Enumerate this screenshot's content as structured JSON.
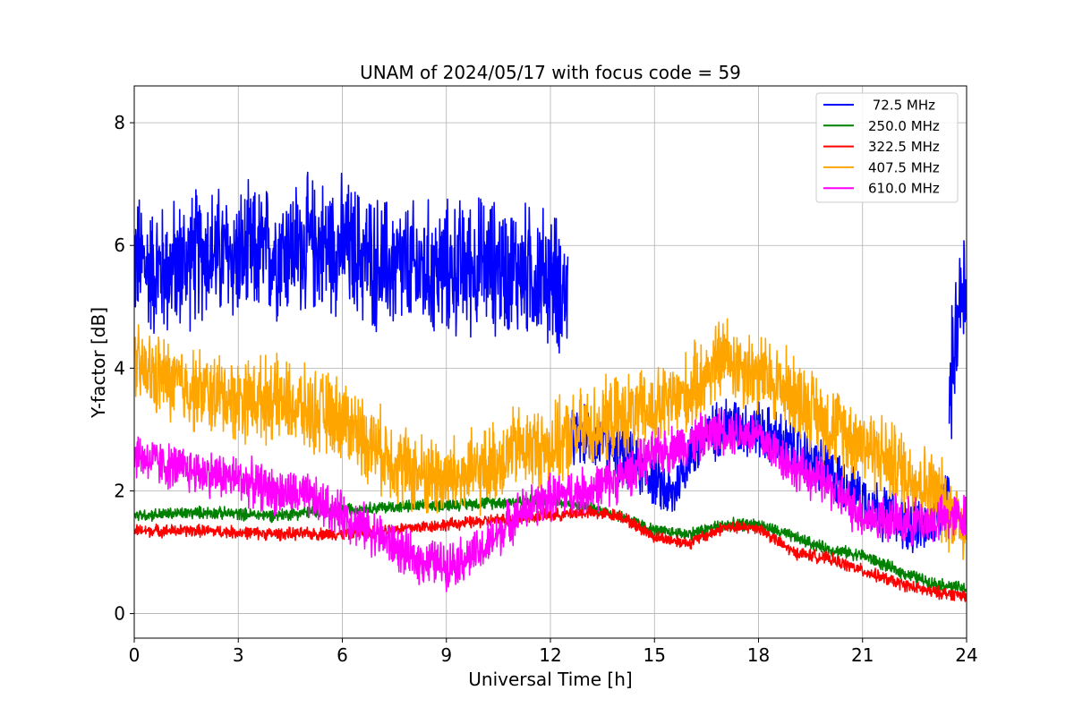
{
  "chart_data": {
    "type": "line",
    "title": "UNAM of 2024/05/17 with focus code = 59",
    "xlabel": "Universal Time [h]",
    "ylabel": "Y-factor [dB]",
    "xlim": [
      0,
      24
    ],
    "ylim": [
      -0.4,
      8.6
    ],
    "xticks": [
      0,
      3,
      6,
      9,
      12,
      15,
      18,
      21,
      24
    ],
    "yticks": [
      0,
      2,
      4,
      6,
      8
    ],
    "grid": true,
    "legend_position": "top-right",
    "series": [
      {
        "name": " 72.5 MHz",
        "color": "#0000ff",
        "noise": 1.3,
        "x": [
          0,
          0.5,
          1,
          2,
          3,
          4,
          5,
          6,
          7,
          8,
          9,
          10,
          11,
          12,
          12.5
        ],
        "y": [
          5.8,
          5.6,
          5.6,
          5.9,
          5.8,
          5.9,
          6.0,
          6.0,
          5.7,
          5.6,
          5.6,
          5.7,
          5.6,
          5.5,
          5.2
        ]
      },
      {
        "name": " 72.5 MHz",
        "color": "#0000ff",
        "noise": 0.55,
        "x": [
          12.5,
          13,
          14,
          15,
          15.5,
          16,
          17,
          18,
          19,
          20,
          21,
          22,
          23,
          23.5
        ],
        "y": [
          2.8,
          2.9,
          2.6,
          2.2,
          1.9,
          2.6,
          3.1,
          3.0,
          2.7,
          2.3,
          1.9,
          1.5,
          1.4,
          2.0
        ]
      },
      {
        "name": " 72.5 MHz",
        "color": "#0000ff",
        "noise": 1.2,
        "x": [
          23.5,
          23.8,
          24
        ],
        "y": [
          3.5,
          5.2,
          5.5
        ]
      },
      {
        "name": "250.0 MHz",
        "color": "#008000",
        "noise": 0.12,
        "x": [
          0,
          2,
          4,
          6,
          8,
          10,
          12,
          13,
          14,
          15,
          16,
          17,
          18,
          19,
          20,
          21,
          22,
          23,
          24
        ],
        "y": [
          1.6,
          1.65,
          1.6,
          1.7,
          1.75,
          1.8,
          1.85,
          1.75,
          1.6,
          1.35,
          1.3,
          1.45,
          1.45,
          1.25,
          1.05,
          0.95,
          0.7,
          0.5,
          0.4
        ]
      },
      {
        "name": "322.5 MHz",
        "color": "#ff0000",
        "noise": 0.12,
        "x": [
          0,
          2,
          4,
          6,
          8,
          10,
          12,
          13,
          14,
          15,
          16,
          17,
          18,
          19,
          20,
          21,
          22,
          23,
          24
        ],
        "y": [
          1.35,
          1.35,
          1.3,
          1.3,
          1.4,
          1.5,
          1.6,
          1.65,
          1.6,
          1.25,
          1.15,
          1.4,
          1.4,
          1.0,
          0.9,
          0.7,
          0.5,
          0.35,
          0.3
        ]
      },
      {
        "name": "407.5 MHz",
        "color": "#ffa500",
        "noise": 0.8,
        "x": [
          0,
          1,
          2,
          3,
          4,
          5,
          6,
          7,
          8,
          9,
          10,
          11,
          12,
          13,
          14,
          15,
          16,
          17,
          18,
          19,
          20,
          21,
          22,
          23,
          24
        ],
        "y": [
          4.0,
          3.8,
          3.6,
          3.5,
          3.5,
          3.3,
          3.2,
          2.7,
          2.3,
          2.2,
          2.3,
          2.7,
          2.7,
          3.0,
          3.2,
          3.3,
          3.6,
          4.2,
          3.9,
          3.6,
          3.1,
          2.8,
          2.4,
          2.0,
          1.4
        ]
      },
      {
        "name": "610.0 MHz",
        "color": "#ff00ff",
        "noise": 0.45,
        "x": [
          0,
          1,
          2,
          3,
          4,
          5,
          6,
          7,
          8,
          9,
          10,
          11,
          12,
          13,
          14,
          15,
          16,
          17,
          18,
          19,
          20,
          21,
          22,
          23,
          24
        ],
        "y": [
          2.6,
          2.4,
          2.3,
          2.2,
          2.0,
          1.9,
          1.6,
          1.3,
          0.9,
          0.8,
          1.0,
          1.6,
          1.9,
          2.0,
          2.2,
          2.6,
          2.8,
          3.0,
          2.9,
          2.4,
          2.1,
          1.6,
          1.5,
          1.5,
          1.6
        ]
      }
    ],
    "legend": [
      {
        "label": " 72.5 MHz",
        "color": "#0000ff"
      },
      {
        "label": "250.0 MHz",
        "color": "#008000"
      },
      {
        "label": "322.5 MHz",
        "color": "#ff0000"
      },
      {
        "label": "407.5 MHz",
        "color": "#ffa500"
      },
      {
        "label": "610.0 MHz",
        "color": "#ff00ff"
      }
    ]
  }
}
